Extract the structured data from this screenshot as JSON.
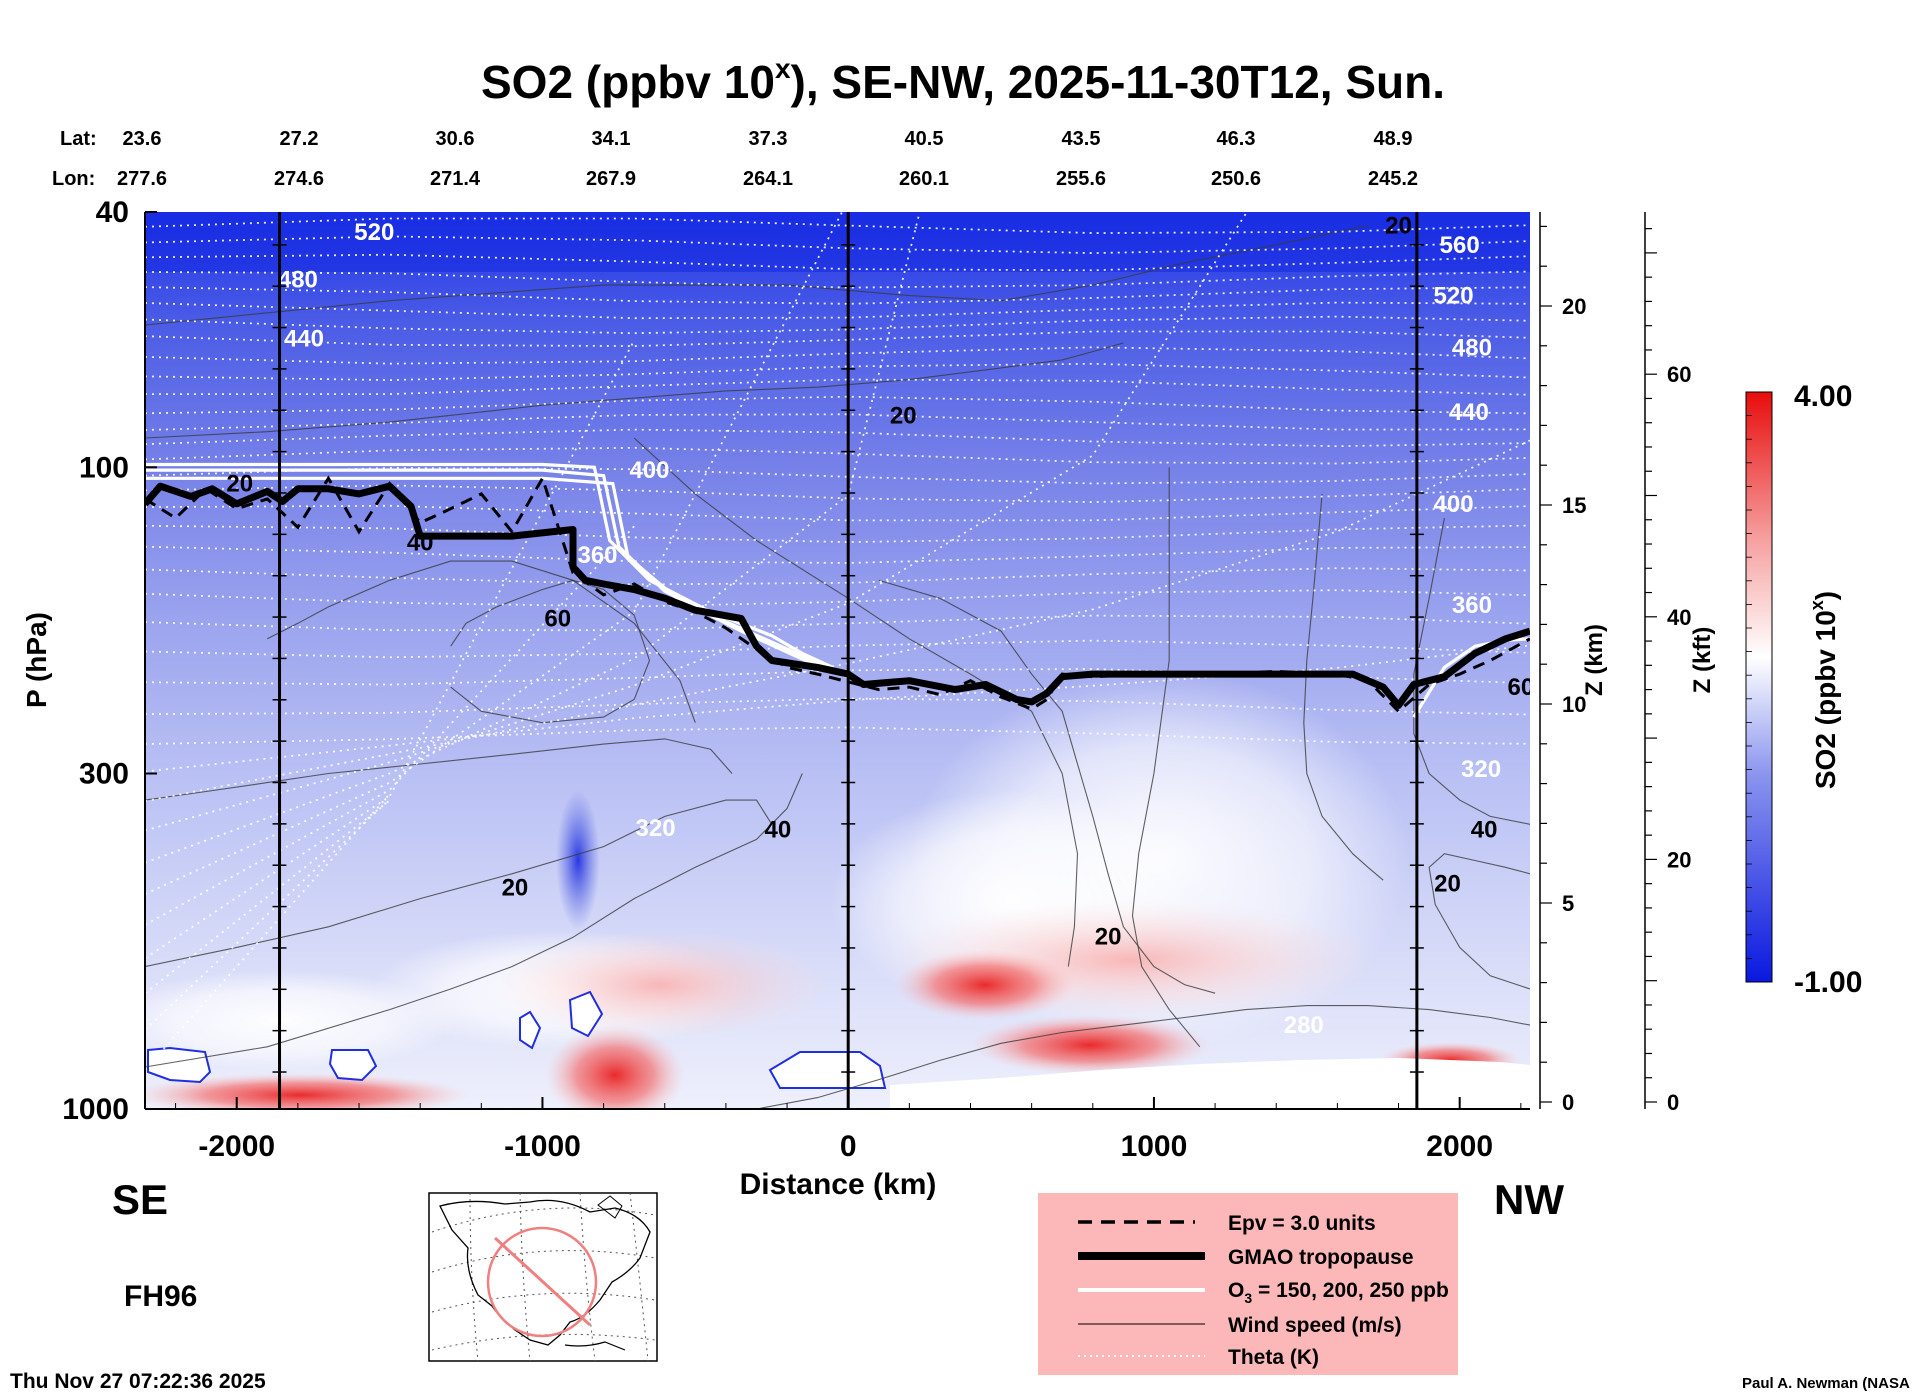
{
  "chart_data": {
    "type": "contour-cross-section",
    "title_main": "SO2 (ppbv 10",
    "title_sup": "x",
    "title_rest": "), SE-NW, 2025-11-30T12, Sun.",
    "lat_label": "Lat:",
    "lon_label": "Lon:",
    "lats": [
      "23.6",
      "27.2",
      "30.6",
      "34.1",
      "37.3",
      "40.5",
      "43.5",
      "46.3",
      "48.9"
    ],
    "lons": [
      "277.6",
      "274.6",
      "271.4",
      "267.9",
      "264.1",
      "260.1",
      "255.6",
      "250.6",
      "245.2"
    ],
    "xlabel": "Distance (km)",
    "xlim": [
      -2300,
      2230
    ],
    "xticks": [
      -2000,
      -1000,
      0,
      1000,
      2000
    ],
    "xtick_labels": [
      "-2000",
      "-1000",
      "0",
      "1000",
      "2000"
    ],
    "ylabel": "P (hPa)",
    "ylim": [
      1000,
      40
    ],
    "yticks": [
      40,
      100,
      300,
      1000
    ],
    "ytick_labels": [
      "40",
      "100",
      "300",
      "1000"
    ],
    "z_km_label": "Z (km)",
    "z_km_ticks": [
      0,
      5,
      10,
      15,
      20
    ],
    "z_km_tick_labels": [
      "0",
      "5",
      "10",
      "15",
      "20"
    ],
    "z_kft_label": "Z (kft)",
    "z_kft_ticks": [
      0,
      20,
      40,
      60
    ],
    "z_kft_tick_labels": [
      "0",
      "20",
      "40",
      "60"
    ],
    "colorbar_label_main": "SO2 (ppbv 10",
    "colorbar_label_sup": "x",
    "colorbar_label_end": ")",
    "colorbar_max_label": "4.00",
    "colorbar_min_label": "-1.00",
    "colorbar_range": [
      -1.0,
      4.0
    ],
    "se_label": "SE",
    "nw_label": "NW",
    "forecast_hour": "FH96",
    "timestamp": "Thu Nov 27 07:22:36 2025",
    "credit": "Paul A. Newman (NASA",
    "theta_labels": [
      {
        "text": "520",
        "x": -1550,
        "p": 43
      },
      {
        "text": "480",
        "x": -1800,
        "p": 51
      },
      {
        "text": "440",
        "x": -1780,
        "p": 63
      },
      {
        "text": "400",
        "x": -650,
        "p": 101
      },
      {
        "text": "360",
        "x": -820,
        "p": 137
      },
      {
        "text": "320",
        "x": -630,
        "p": 365
      },
      {
        "text": "560",
        "x": 2000,
        "p": 45
      },
      {
        "text": "520",
        "x": 1980,
        "p": 54
      },
      {
        "text": "480",
        "x": 2040,
        "p": 65
      },
      {
        "text": "440",
        "x": 2030,
        "p": 82
      },
      {
        "text": "400",
        "x": 1980,
        "p": 114
      },
      {
        "text": "360",
        "x": 2040,
        "p": 164
      },
      {
        "text": "320",
        "x": 2070,
        "p": 295
      },
      {
        "text": "280",
        "x": 1490,
        "p": 740
      }
    ],
    "wind_labels": [
      {
        "text": "20",
        "x": -1990,
        "p": 106
      },
      {
        "text": "40",
        "x": -1400,
        "p": 131
      },
      {
        "text": "60",
        "x": -950,
        "p": 172
      },
      {
        "text": "20",
        "x": 180,
        "p": 83
      },
      {
        "text": "20",
        "x": 1800,
        "p": 42
      },
      {
        "text": "60",
        "x": 2200,
        "p": 220
      },
      {
        "text": "40",
        "x": -230,
        "p": 367
      },
      {
        "text": "40",
        "x": 2080,
        "p": 367
      },
      {
        "text": "20",
        "x": -1090,
        "p": 452
      },
      {
        "text": "20",
        "x": 850,
        "p": 538
      },
      {
        "text": "20",
        "x": 1960,
        "p": 445
      }
    ],
    "tropopause": {
      "x": [
        -2300,
        -2250,
        -2150,
        -2080,
        -2000,
        -1900,
        -1850,
        -1800,
        -1700,
        -1600,
        -1500,
        -1430,
        -1400,
        -1300,
        -1100,
        -900,
        -900,
        -860,
        -800,
        -700,
        -600,
        -500,
        -350,
        -300,
        -250,
        -100,
        0,
        50,
        200,
        350,
        450,
        550,
        600,
        650,
        700,
        800,
        1000,
        1200,
        1500,
        1650,
        1750,
        1800,
        1850,
        1950,
        2050,
        2150,
        2230
      ],
      "p": [
        114,
        107,
        111,
        108,
        114,
        109,
        113,
        108,
        108,
        110,
        107,
        115,
        128,
        128,
        128,
        125,
        143,
        150,
        152,
        155,
        160,
        167,
        172,
        190,
        200,
        205,
        210,
        218,
        215,
        222,
        218,
        230,
        232,
        225,
        212,
        210,
        210,
        210,
        210,
        210,
        220,
        235,
        218,
        212,
        195,
        185,
        180
      ]
    },
    "epv_line": {
      "x": [
        -2300,
        -2200,
        -2100,
        -2000,
        -1900,
        -1800,
        -1700,
        -1600,
        -1500,
        -1400,
        -1300,
        -1200,
        -1100,
        -1000,
        -900,
        -800,
        -700,
        -600,
        -500,
        -400,
        -300,
        -200,
        -100,
        0,
        100,
        200,
        300,
        400,
        500,
        600,
        650,
        700,
        800,
        1000,
        1200,
        1400,
        1600,
        1700,
        1800,
        1900,
        2000,
        2100,
        2230
      ],
      "p": [
        112,
        120,
        108,
        116,
        112,
        124,
        104,
        126,
        106,
        122,
        116,
        110,
        126,
        104,
        146,
        158,
        152,
        162,
        168,
        178,
        192,
        205,
        210,
        216,
        222,
        220,
        226,
        215,
        228,
        238,
        230,
        210,
        212,
        210,
        210,
        208,
        210,
        215,
        240,
        218,
        210,
        200,
        185
      ]
    },
    "ozone_lines": [
      {
        "x": [
          -2300,
          -2000,
          -1500,
          -1000,
          -830,
          -780,
          -650,
          -450,
          -250,
          -150,
          -50
        ],
        "p": [
          99,
          99,
          99,
          99,
          100,
          130,
          150,
          168,
          183,
          195,
          205
        ]
      },
      {
        "x": [
          -2300,
          -2000,
          -1500,
          -1000,
          -800,
          -750,
          -600,
          -400,
          -220,
          -120,
          -30
        ],
        "p": [
          101,
          101,
          101,
          101,
          103,
          133,
          156,
          174,
          190,
          200,
          208
        ]
      },
      {
        "x": [
          -2300,
          -2000,
          -1500,
          -1000,
          -770,
          -720,
          -560,
          -350,
          -180,
          -80,
          0
        ],
        "p": [
          104,
          104,
          104,
          104,
          106,
          138,
          160,
          180,
          196,
          206,
          212
        ]
      },
      {
        "x": [
          1850,
          1950,
          2050,
          2150,
          2230
        ],
        "p": [
          245,
          205,
          190,
          186,
          185
        ]
      }
    ],
    "legend": [
      {
        "style": "dashed",
        "label": "Epv = 3.0 units"
      },
      {
        "style": "thick",
        "label": "GMAO tropopause"
      },
      {
        "style": "white",
        "label_main": "O",
        "label_sub": "3",
        "label_rest": " = 150, 200, 250 ppb"
      },
      {
        "style": "thin",
        "label": "Wind speed (m/s)"
      },
      {
        "style": "dotted",
        "label": "Theta (K)"
      }
    ]
  },
  "colors": {
    "low": "#1020e8",
    "mid": "#ffffff",
    "high": "#e80c0c",
    "legend_bg": "#fcb8b8",
    "map_circle": "#f08080"
  },
  "map_inset": {
    "name": "north-america-map"
  }
}
